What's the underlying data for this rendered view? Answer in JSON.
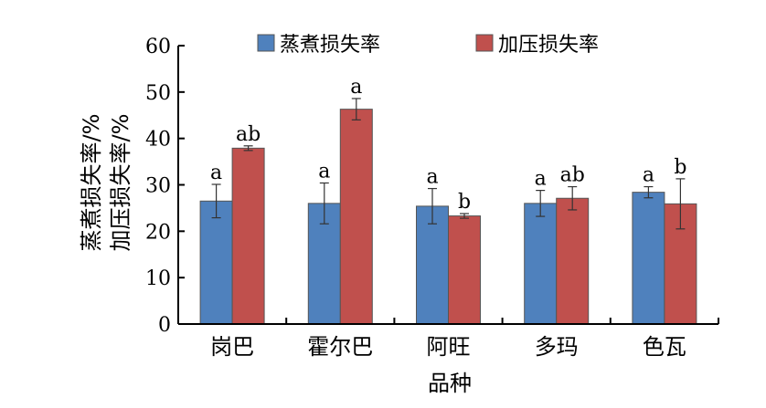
{
  "chart_data": {
    "type": "bar",
    "categories": [
      "岗巴",
      "霍尔巴",
      "阿旺",
      "多玛",
      "色瓦"
    ],
    "series": [
      {
        "name": "蒸煮损失率",
        "color": "#4f81bd",
        "values": [
          26.5,
          26.0,
          25.4,
          26.0,
          28.4
        ],
        "errors": [
          3.6,
          4.4,
          3.8,
          2.8,
          1.2
        ],
        "labels": [
          "a",
          "a",
          "a",
          "a",
          "a"
        ]
      },
      {
        "name": "加压损失率",
        "color": "#c0504d",
        "values": [
          37.9,
          46.3,
          23.3,
          27.1,
          25.9
        ],
        "errors": [
          0.5,
          2.3,
          0.5,
          2.5,
          5.4
        ],
        "labels": [
          "ab",
          "a",
          "b",
          "ab",
          "b"
        ]
      }
    ],
    "ylabel_lines": [
      "蒸煮损失率/%",
      "加压损失率/%"
    ],
    "xlabel": "品种",
    "ylim": [
      0,
      60
    ],
    "yticks": [
      "0",
      "10",
      "20",
      "30",
      "40",
      "50",
      "60"
    ],
    "grid": false,
    "legend_position": "top"
  }
}
